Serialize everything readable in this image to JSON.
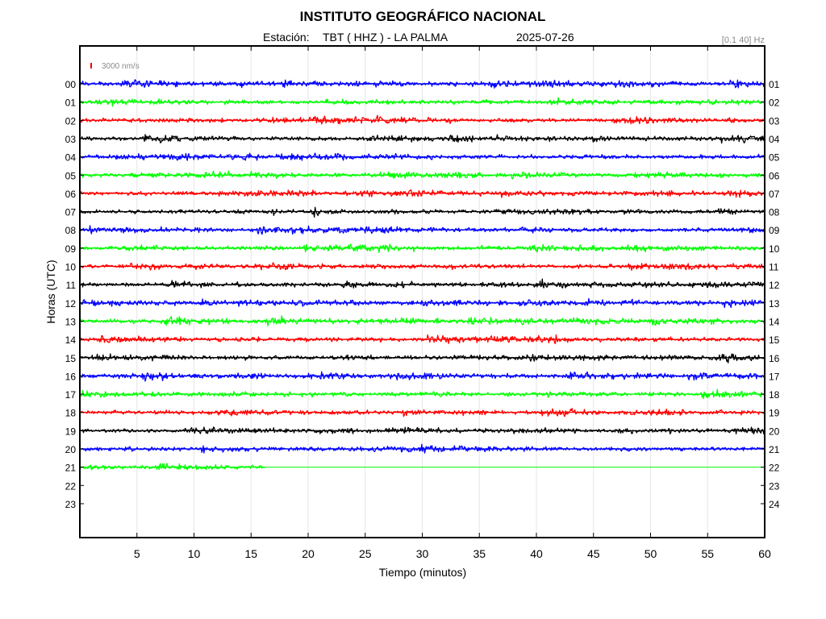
{
  "header": {
    "title": "INSTITUTO GEOGRÁFICO NACIONAL",
    "station_prefix": "Estación:",
    "station": "TBT ( HHZ ) - LA PALMA",
    "date": "2025-07-26",
    "filter": "[0.1 40] Hz"
  },
  "scale": {
    "label": "3000 nm/s",
    "color": "#ff0000"
  },
  "colors": {
    "blue": "#0000ff",
    "green": "#00ff00",
    "red": "#ff0000",
    "black": "#000000",
    "grid": "#e6e6e6"
  },
  "chart_data": {
    "type": "line",
    "xlabel": "Tiempo (minutos)",
    "ylabel": "Horas (UTC)",
    "xlim": [
      0,
      60
    ],
    "xticks": [
      "5",
      "10",
      "15",
      "20",
      "25",
      "30",
      "35",
      "40",
      "45",
      "50",
      "55",
      "60"
    ],
    "grid": true,
    "left_hour_labels": [
      "00",
      "01",
      "02",
      "03",
      "04",
      "05",
      "06",
      "07",
      "08",
      "09",
      "10",
      "11",
      "12",
      "13",
      "14",
      "15",
      "16",
      "17",
      "18",
      "19",
      "20",
      "21",
      "22",
      "23"
    ],
    "right_hour_labels": [
      "01",
      "02",
      "03",
      "04",
      "05",
      "06",
      "07",
      "08",
      "09",
      "10",
      "11",
      "12",
      "13",
      "14",
      "15",
      "16",
      "17",
      "18",
      "19",
      "20",
      "21",
      "22",
      "23",
      "24"
    ],
    "color_cycle": [
      "blue",
      "green",
      "red",
      "black"
    ],
    "traces": [
      {
        "hour": "00",
        "color": "blue",
        "start_min": 0,
        "end_min": 60
      },
      {
        "hour": "01",
        "color": "green",
        "start_min": 0,
        "end_min": 60
      },
      {
        "hour": "02",
        "color": "red",
        "start_min": 0,
        "end_min": 60
      },
      {
        "hour": "03",
        "color": "black",
        "start_min": 0,
        "end_min": 60
      },
      {
        "hour": "04",
        "color": "blue",
        "start_min": 0,
        "end_min": 60
      },
      {
        "hour": "05",
        "color": "green",
        "start_min": 0,
        "end_min": 60
      },
      {
        "hour": "06",
        "color": "red",
        "start_min": 0,
        "end_min": 60
      },
      {
        "hour": "07",
        "color": "black",
        "start_min": 0,
        "end_min": 60
      },
      {
        "hour": "08",
        "color": "blue",
        "start_min": 0,
        "end_min": 60
      },
      {
        "hour": "09",
        "color": "green",
        "start_min": 0,
        "end_min": 60
      },
      {
        "hour": "10",
        "color": "red",
        "start_min": 0,
        "end_min": 60
      },
      {
        "hour": "11",
        "color": "black",
        "start_min": 0,
        "end_min": 60
      },
      {
        "hour": "12",
        "color": "blue",
        "start_min": 0,
        "end_min": 60
      },
      {
        "hour": "13",
        "color": "green",
        "start_min": 0,
        "end_min": 60
      },
      {
        "hour": "14",
        "color": "red",
        "start_min": 0,
        "end_min": 60
      },
      {
        "hour": "15",
        "color": "black",
        "start_min": 0,
        "end_min": 60
      },
      {
        "hour": "16",
        "color": "blue",
        "start_min": 0,
        "end_min": 60
      },
      {
        "hour": "17",
        "color": "green",
        "start_min": 0,
        "end_min": 60
      },
      {
        "hour": "18",
        "color": "red",
        "start_min": 0,
        "end_min": 60
      },
      {
        "hour": "19",
        "color": "black",
        "start_min": 0,
        "end_min": 60
      },
      {
        "hour": "20",
        "color": "blue",
        "start_min": 0,
        "end_min": 60
      },
      {
        "hour": "21",
        "color": "green",
        "start_min": 0,
        "end_min": 16.3
      }
    ]
  }
}
